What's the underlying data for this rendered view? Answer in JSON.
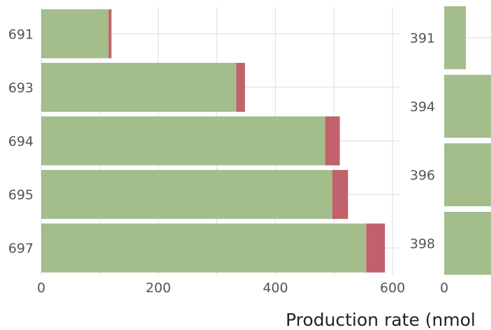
{
  "chart_data": [
    {
      "type": "bar",
      "orientation": "horizontal",
      "stacked": true,
      "categories": [
        "691",
        "693",
        "694",
        "695",
        "697"
      ],
      "series": [
        {
          "values": [
            115,
            333,
            485,
            497,
            555
          ],
          "color": "#a3bd8b"
        },
        {
          "values": [
            5,
            15,
            25,
            27,
            32
          ],
          "color": "#c0616b"
        }
      ],
      "xlim": [
        0,
        600
      ],
      "x_ticks": [
        "0",
        "200",
        "400",
        "600"
      ],
      "grid": true
    },
    {
      "type": "bar",
      "orientation": "horizontal",
      "stacked": true,
      "categories": [
        "391",
        "394",
        "396",
        "398"
      ],
      "series": [
        {
          "values": [
            37,
            80,
            80,
            80
          ],
          "color": "#a3bd8b"
        }
      ],
      "x_ticks": [
        "0"
      ],
      "grid": true
    }
  ],
  "xlabel": "Production rate (nmol"
}
